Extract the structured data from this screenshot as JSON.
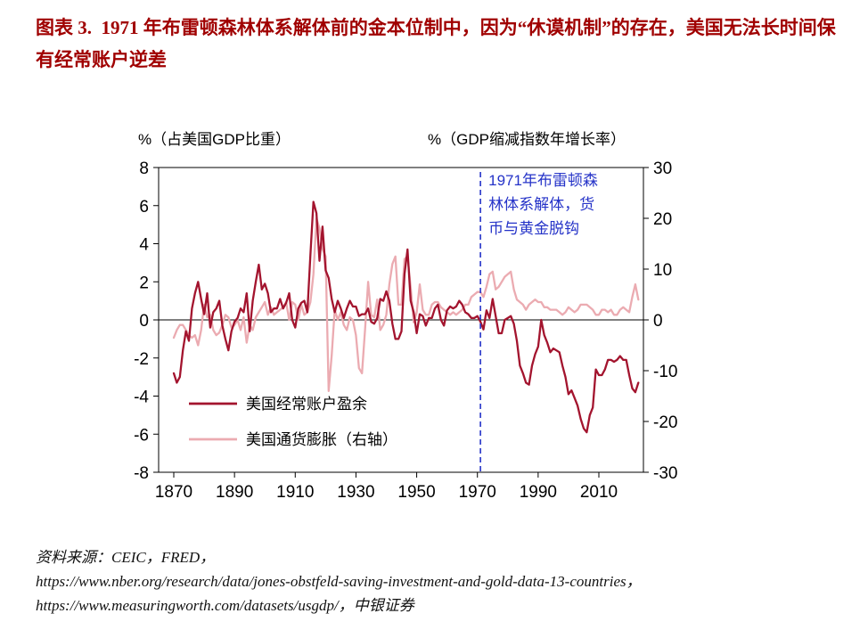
{
  "title": "图表 3.  1971 年布雷顿森林体系解体前的金本位制中，因为“休谟机制”的存在，美国无法长时间保有经常账户逆差",
  "source": {
    "line1": "资料来源：CEIC，FRED，",
    "line2": "https://www.nber.org/research/data/jones-obstfeld-saving-investment-and-gold-data-13-countries，",
    "line3": "https://www.measuringworth.com/datasets/usgdp/，中银证券"
  },
  "chart_data": {
    "type": "line",
    "left_axis_label": "%（占美国GDP比重）",
    "right_axis_label": "%（GDP缩减指数年增长率）",
    "left_ylim": [
      -8,
      8
    ],
    "left_yticks": [
      8,
      6,
      4,
      2,
      0,
      -2,
      -4,
      -6,
      -8
    ],
    "right_ylim": [
      -30,
      30
    ],
    "right_yticks": [
      30,
      20,
      10,
      0,
      -10,
      -20,
      -30
    ],
    "xticks": [
      1870,
      1890,
      1910,
      1930,
      1950,
      1970,
      1990,
      2010
    ],
    "x_range": [
      1870,
      2023
    ],
    "grid": false,
    "legend_position": "inside-lower-left",
    "annotation": {
      "x": 1971,
      "line_style": "dashed",
      "color": "#2533C8",
      "lines": [
        "1971年布雷顿森",
        "林体系解体，货",
        "币与黄金脱钩"
      ]
    },
    "series": [
      {
        "id": "current-account",
        "name": "美国经常账户盈余",
        "axis": "left",
        "color": "#A3142E",
        "start_year": 1870,
        "values": [
          -2.8,
          -3.3,
          -3.0,
          -1.6,
          -0.6,
          -1.1,
          0.6,
          1.4,
          2.0,
          1.1,
          0.3,
          1.4,
          -0.4,
          0.4,
          0.6,
          1.0,
          -0.3,
          -1.0,
          -1.6,
          -0.6,
          -0.1,
          0.1,
          0.6,
          0.4,
          1.4,
          -0.6,
          1.0,
          2.0,
          2.9,
          1.6,
          1.9,
          1.4,
          0.4,
          0.6,
          0.6,
          1.1,
          0.6,
          0.9,
          1.4,
          0.0,
          -0.4,
          0.6,
          0.9,
          1.0,
          0.4,
          3.4,
          6.2,
          5.6,
          3.1,
          4.9,
          2.6,
          2.2,
          1.1,
          0.4,
          1.0,
          0.6,
          0.1,
          0.6,
          1.0,
          0.7,
          0.7,
          0.2,
          0.3,
          0.3,
          0.6,
          -0.1,
          -0.2,
          0.1,
          1.1,
          1.0,
          1.5,
          1.0,
          -0.2,
          -1.0,
          -1.0,
          -0.6,
          2.4,
          3.7,
          1.0,
          0.4,
          -0.7,
          0.3,
          0.2,
          -0.3,
          0.1,
          0.1,
          0.6,
          0.8,
          0.0,
          -0.3,
          0.5,
          0.7,
          0.6,
          0.7,
          1.0,
          0.8,
          0.4,
          0.3,
          0.1,
          0.1,
          0.2,
          -0.1,
          -0.5,
          0.5,
          0.1,
          1.1,
          0.2,
          -0.7,
          -0.7,
          0.0,
          0.1,
          0.2,
          -0.2,
          -1.1,
          -2.4,
          -2.8,
          -3.3,
          -3.4,
          -2.4,
          -1.8,
          -1.4,
          0.0,
          -0.8,
          -1.2,
          -1.7,
          -1.5,
          -1.6,
          -1.7,
          -2.4,
          -3.0,
          -3.9,
          -3.7,
          -4.1,
          -4.5,
          -5.2,
          -5.7,
          -5.9,
          -5.0,
          -4.6,
          -2.6,
          -2.9,
          -2.9,
          -2.6,
          -2.1,
          -2.1,
          -2.2,
          -2.1,
          -1.9,
          -2.1,
          -2.1,
          -2.9,
          -3.6,
          -3.8,
          -3.3
        ]
      },
      {
        "id": "inflation",
        "name": "美国通货膨胀（右轴）",
        "axis": "right",
        "color": "#EBABB1",
        "start_year": 1870,
        "values": [
          -3.5,
          -2.0,
          -1.0,
          -1.0,
          -2.0,
          -3.0,
          -3.5,
          -3.0,
          -5.0,
          -2.0,
          3.0,
          0.5,
          1.0,
          -2.0,
          -3.0,
          -2.5,
          -1.0,
          1.0,
          0.5,
          -1.5,
          -1.0,
          0.0,
          -2.0,
          0.5,
          -4.5,
          -1.0,
          -2.0,
          0.5,
          1.5,
          2.5,
          3.5,
          1.0,
          2.5,
          1.0,
          1.5,
          2.0,
          2.5,
          3.5,
          0.0,
          3.5,
          3.0,
          0.0,
          3.0,
          1.0,
          1.5,
          3.5,
          9.0,
          20.0,
          18.0,
          14.0,
          12.5,
          -14.0,
          -7.0,
          2.0,
          0.0,
          1.5,
          -1.0,
          -2.0,
          0.5,
          0.0,
          -3.0,
          -9.5,
          -10.5,
          -2.0,
          7.5,
          1.0,
          0.5,
          4.0,
          -2.0,
          -1.0,
          1.0,
          7.0,
          11.0,
          12.5,
          3.0,
          3.0,
          12.0,
          12.5,
          6.5,
          -0.5,
          1.5,
          7.0,
          2.0,
          1.0,
          1.0,
          3.0,
          3.5,
          3.5,
          2.5,
          2.0,
          1.5,
          1.0,
          1.5,
          1.0,
          1.5,
          2.0,
          3.0,
          3.0,
          4.5,
          5.0,
          5.5,
          5.5,
          4.5,
          6.5,
          9.0,
          9.5,
          6.0,
          6.5,
          7.5,
          8.5,
          9.0,
          9.5,
          6.0,
          4.0,
          3.5,
          3.0,
          2.0,
          3.0,
          3.5,
          4.0,
          3.5,
          3.5,
          2.5,
          2.5,
          2.0,
          2.0,
          2.0,
          1.5,
          1.0,
          1.5,
          2.5,
          2.0,
          1.5,
          2.0,
          3.0,
          3.0,
          3.0,
          2.5,
          2.0,
          1.0,
          1.0,
          2.0,
          2.0,
          1.5,
          2.0,
          1.0,
          1.0,
          2.0,
          2.5,
          2.0,
          1.5,
          4.5,
          7.0,
          4.0
        ]
      }
    ]
  }
}
